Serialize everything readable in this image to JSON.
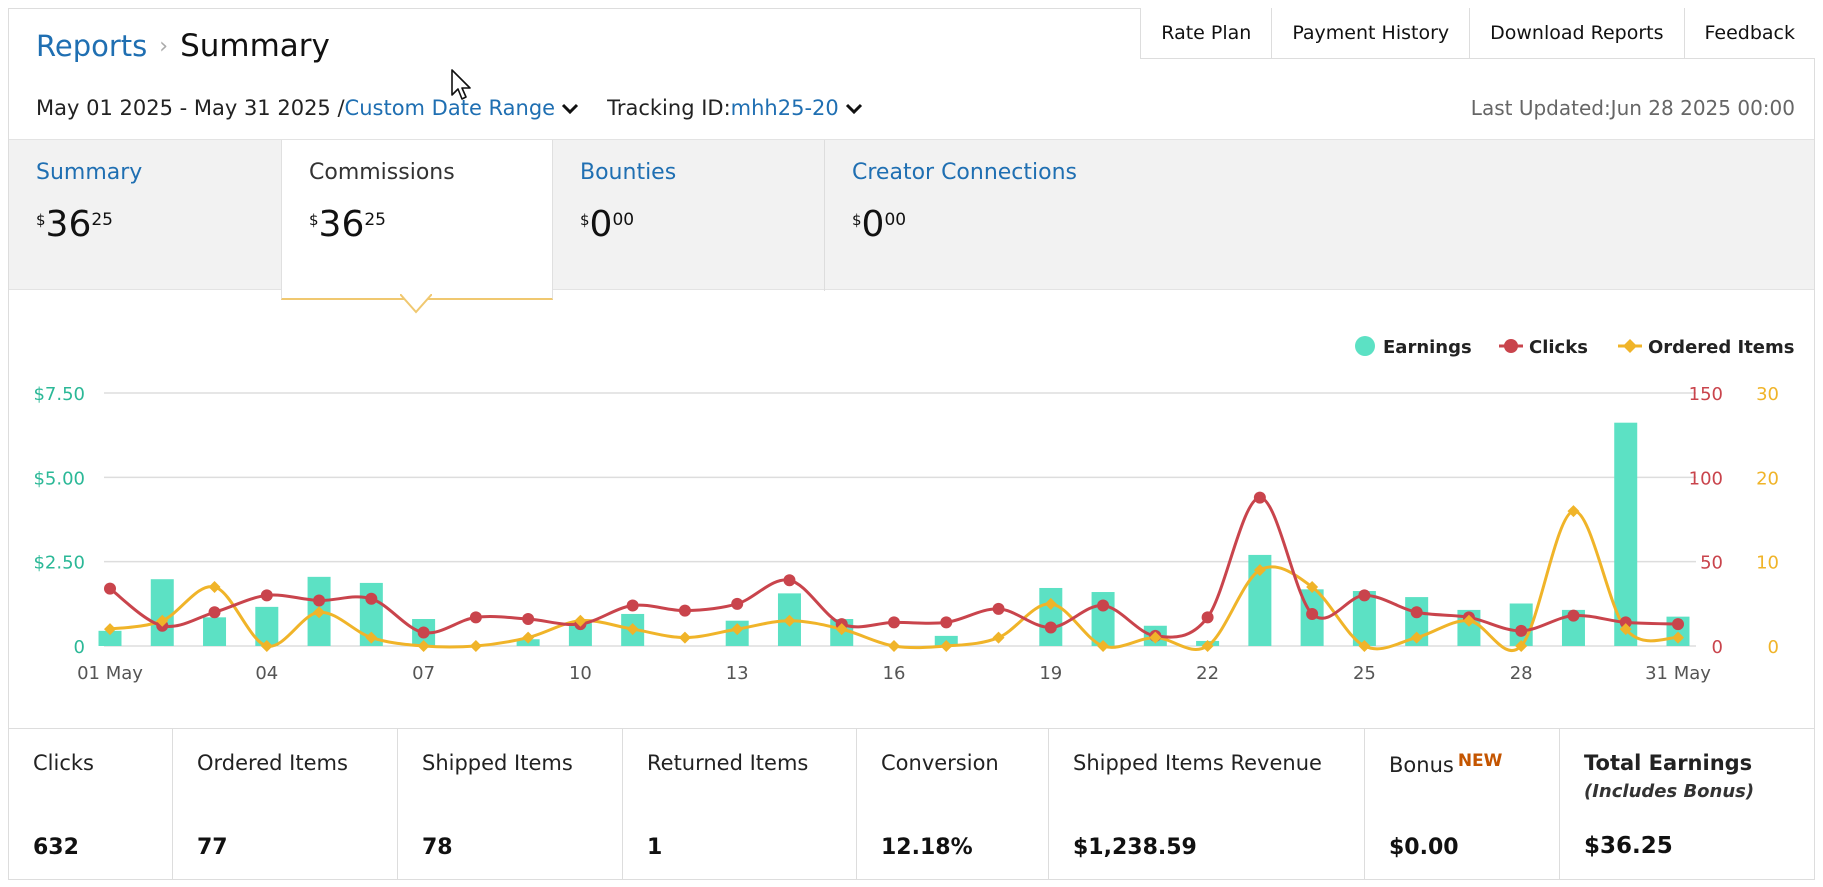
{
  "header": {
    "breadcrumb_link": "Reports",
    "breadcrumb_sep": "›",
    "page_title": "Summary",
    "buttons": [
      "Rate Plan",
      "Payment History",
      "Download Reports",
      "Feedback"
    ]
  },
  "filters": {
    "date_range": "May 01 2025 - May 31 2025 /",
    "date_range_type": "Custom Date Range",
    "tracking_label": "Tracking ID:",
    "tracking_value": "mhh25-20",
    "last_updated": "Last Updated:Jun 28 2025 00:00"
  },
  "tiles": [
    {
      "title": "Summary",
      "symbol": "$",
      "main": "36",
      "cents": "25"
    },
    {
      "title": "Commissions",
      "symbol": "$",
      "main": "36",
      "cents": "25"
    },
    {
      "title": "Bounties",
      "symbol": "$",
      "main": "0",
      "cents": "00"
    },
    {
      "title": "Creator Connections",
      "symbol": "$",
      "main": "0",
      "cents": "00"
    }
  ],
  "chart_data": {
    "type": "bar",
    "legend": [
      "Earnings",
      "Clicks",
      "Ordered Items"
    ],
    "legend_position": "top-right",
    "x_tick_labels": [
      "01 May",
      "04",
      "07",
      "10",
      "13",
      "16",
      "19",
      "22",
      "25",
      "28",
      "31 May"
    ],
    "y_left_ticks": [
      "0",
      "$2.50",
      "$5.00",
      "$7.50"
    ],
    "y_right_clicks_ticks": [
      "0",
      "50",
      "100",
      "150"
    ],
    "y_right_items_ticks": [
      "0",
      "10",
      "20",
      "30"
    ],
    "ylim_earnings": [
      0,
      7.5
    ],
    "ylim_clicks": [
      0,
      150
    ],
    "ylim_items": [
      0,
      30
    ],
    "days": [
      1,
      2,
      3,
      4,
      5,
      6,
      7,
      8,
      9,
      10,
      11,
      12,
      13,
      14,
      15,
      16,
      17,
      18,
      19,
      20,
      21,
      22,
      23,
      24,
      25,
      26,
      27,
      28,
      29,
      30,
      31
    ],
    "series": [
      {
        "name": "Earnings",
        "type": "bar",
        "color": "#5ce1c4",
        "values": [
          0.45,
          1.98,
          0.85,
          1.16,
          2.05,
          1.87,
          0.8,
          0.0,
          0.2,
          0.68,
          0.95,
          0.0,
          0.75,
          1.56,
          0.8,
          0.0,
          0.3,
          0.0,
          1.72,
          1.6,
          0.6,
          0.15,
          2.7,
          1.68,
          1.63,
          1.45,
          1.07,
          1.26,
          1.07,
          6.62,
          0.87
        ]
      },
      {
        "name": "Clicks",
        "type": "line",
        "color": "#c9444c",
        "values": [
          34,
          12,
          20,
          30,
          27,
          28,
          8,
          17,
          16,
          13,
          24,
          21,
          25,
          39,
          13,
          14,
          14,
          22,
          11,
          24,
          6,
          17,
          88,
          19,
          30,
          20,
          17,
          9,
          18,
          14,
          13
        ]
      },
      {
        "name": "Ordered Items",
        "type": "line",
        "color": "#f0b429",
        "values": [
          2,
          3,
          7,
          0,
          4,
          1,
          0,
          0,
          1,
          3,
          2,
          1,
          2,
          3,
          2,
          0,
          0,
          1,
          5,
          0,
          1,
          0,
          9,
          7,
          0,
          1,
          3,
          0,
          16,
          2,
          1
        ]
      }
    ]
  },
  "stats": [
    {
      "label": "Clicks",
      "value": "632"
    },
    {
      "label": "Ordered Items",
      "value": "77"
    },
    {
      "label": "Shipped Items",
      "value": "78"
    },
    {
      "label": "Returned Items",
      "value": "1"
    },
    {
      "label": "Conversion",
      "value": "12.18%"
    },
    {
      "label": "Shipped Items Revenue",
      "value": "$1,238.59"
    },
    {
      "label": "Bonus",
      "badge": "NEW",
      "value": "$0.00"
    },
    {
      "label": "Total Earnings",
      "sub": "(Includes Bonus)",
      "value": "$36.25"
    }
  ],
  "colors": {
    "link": "#1f6fb2",
    "earnings": "#5ce1c4",
    "earnings_axis": "#2bb897",
    "clicks": "#c9444c",
    "items": "#f0b429",
    "tile_bg": "#f2f2f2",
    "active_tile_border": "#f0c870",
    "new_badge": "#c45500"
  },
  "icons": {
    "dropdown": "chevron-down-icon",
    "cursor": "mouse-pointer-icon"
  }
}
